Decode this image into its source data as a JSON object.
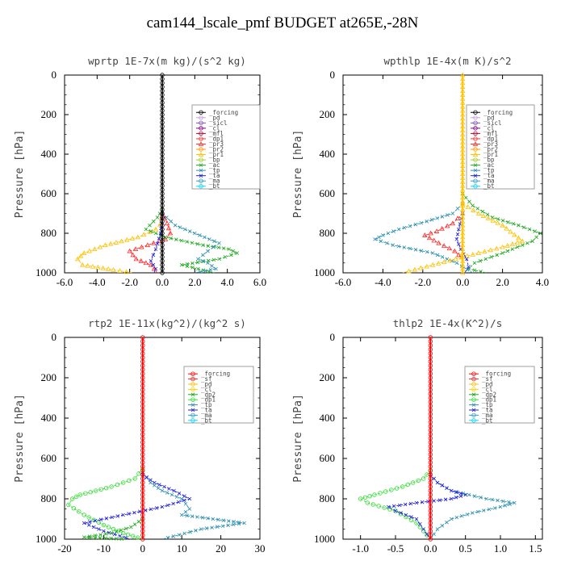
{
  "title": "cam144_lscale_pmf  BUDGET at265E,-28N",
  "chart_data": [
    {
      "type": "line",
      "title": "wprtp  1E-7x(m kg)/(s^2 kg)",
      "ylabel": "Pressure [hPa]",
      "xlim": [
        -6,
        6
      ],
      "ylim": [
        1000,
        0
      ],
      "xticks": [
        "-6.0",
        "-4.0",
        "-2.0",
        "0.0",
        "2.0",
        "4.0",
        "6.0"
      ],
      "yticks": [
        "0",
        "200",
        "400",
        "600",
        "800",
        "1000"
      ],
      "legend": [
        "_forcing",
        "_pd",
        "_sicl",
        "_cl",
        "_mfl",
        "_dp1",
        "_pr3",
        "_pr2",
        "_pr1",
        "_bp",
        "_ac",
        "_tp",
        "_ta",
        "_ma",
        "_bt"
      ],
      "legend_placement": "top-right",
      "series": [
        {
          "name": "_pr1",
          "color": "#ffc000",
          "x": [
            0,
            -0.1,
            -0.4,
            -1.5,
            -3.5,
            -4.8,
            -5.2,
            -4.9,
            -3.0,
            -1.8
          ],
          "y": [
            700,
            750,
            780,
            820,
            860,
            900,
            930,
            960,
            985,
            1000
          ]
        },
        {
          "name": "_pr3",
          "color": "#ff2a2a",
          "x": [
            0,
            0.3,
            0.5,
            0.2,
            -0.9,
            -2.0,
            -1.6,
            -0.7,
            -0.3
          ],
          "y": [
            700,
            750,
            800,
            830,
            860,
            890,
            930,
            960,
            1000
          ]
        },
        {
          "name": "_ac",
          "color": "#1fa81f",
          "x": [
            0,
            -0.3,
            -1.0,
            0.2,
            2.5,
            4.1,
            4.6,
            3.5,
            1.2,
            3.2
          ],
          "y": [
            680,
            720,
            780,
            820,
            860,
            880,
            900,
            930,
            960,
            1000
          ]
        },
        {
          "name": "_tp",
          "color": "#2a8fb0",
          "x": [
            0,
            0.8,
            2.0,
            3.5,
            2.8,
            2.2,
            2.8,
            3.3,
            2.0
          ],
          "y": [
            700,
            760,
            800,
            850,
            890,
            930,
            950,
            980,
            1000
          ]
        },
        {
          "name": "_ta",
          "color": "#2020e0",
          "x": [
            0,
            -0.1,
            -0.4,
            -0.7,
            -0.4,
            -0.5
          ],
          "y": [
            700,
            800,
            880,
            940,
            980,
            1000
          ]
        },
        {
          "name": "_forcing",
          "color": "#000000",
          "marker": "circle",
          "x": [
            0,
            0
          ],
          "y": [
            0,
            1000
          ]
        }
      ]
    },
    {
      "type": "line",
      "title": "wpthlp  1E-4x(m K)/s^2",
      "ylabel": "Pressure [hPa]",
      "xlim": [
        -6,
        4
      ],
      "ylim": [
        1000,
        0
      ],
      "xticks": [
        "-6.0",
        "-4.0",
        "-2.0",
        "0.0",
        "2.0",
        "4.0"
      ],
      "yticks": [
        "0",
        "200",
        "400",
        "600",
        "800",
        "1000"
      ],
      "legend": [
        "_forcing",
        "_pd",
        "_sicl",
        "_cl",
        "_mfl",
        "_dp1",
        "_pr3",
        "_pr2",
        "_pr1",
        "_bp",
        "_ac",
        "_tp",
        "_ta",
        "_ma",
        "_bt"
      ],
      "legend_placement": "top-right",
      "series": [
        {
          "name": "_ac",
          "color": "#1fa81f",
          "x": [
            0,
            0.5,
            1.5,
            2.8,
            3.9,
            3.5,
            2.0,
            0.6,
            0.3,
            1.2
          ],
          "y": [
            600,
            660,
            720,
            760,
            800,
            840,
            900,
            950,
            980,
            1000
          ]
        },
        {
          "name": "_tp",
          "color": "#2a8fb0",
          "x": [
            0,
            -0.5,
            -1.8,
            -3.2,
            -4.0,
            -4.4,
            -3.5,
            -1.5,
            -0.3,
            0.5
          ],
          "y": [
            650,
            700,
            740,
            780,
            810,
            830,
            860,
            900,
            950,
            1000
          ]
        },
        {
          "name": "_pr3",
          "color": "#ff2a2a",
          "x": [
            0,
            -0.5,
            -1.3,
            -1.9,
            -1.2,
            -0.4,
            0
          ],
          "y": [
            700,
            750,
            790,
            810,
            850,
            890,
            930
          ]
        },
        {
          "name": "_pr1",
          "color": "#ffc000",
          "x": [
            0,
            0.8,
            2.0,
            3.0,
            2.0,
            0.8,
            -1.5,
            -3.0
          ],
          "y": [
            650,
            700,
            760,
            840,
            870,
            900,
            960,
            1000
          ]
        },
        {
          "name": "_ta",
          "color": "#2020e0",
          "x": [
            0,
            -0.2,
            -0.3,
            -0.1,
            0.2,
            0.3,
            0.1
          ],
          "y": [
            700,
            780,
            830,
            880,
            930,
            970,
            1000
          ]
        },
        {
          "name": "_forcing",
          "color": "#ffc000",
          "marker": "triangle",
          "x": [
            0,
            0
          ],
          "y": [
            0,
            1000
          ]
        }
      ]
    },
    {
      "type": "line",
      "title": "rtp2  1E-11x(kg^2)/(kg^2 s)",
      "ylabel": "Pressure [hPa]",
      "xlim": [
        -20,
        30
      ],
      "ylim": [
        1000,
        0
      ],
      "xticks": [
        "-20",
        "-10",
        "0",
        "10",
        "20",
        "30"
      ],
      "yticks": [
        "0",
        "200",
        "400",
        "600",
        "800",
        "1000"
      ],
      "legend": [
        "_forcing",
        "_sf",
        "_pd",
        "_cl",
        "_dp2",
        "_dp1",
        "_tp",
        "_ta",
        "_ma",
        "_bt"
      ],
      "legend_placement": "top-right",
      "series": [
        {
          "name": "_dp1",
          "color": "#33dd33",
          "x": [
            0,
            -2,
            -8,
            -16,
            -18,
            -19,
            -15,
            -10,
            -5,
            0
          ],
          "y": [
            650,
            700,
            740,
            780,
            800,
            830,
            880,
            930,
            970,
            1000
          ]
        },
        {
          "name": "_tp",
          "color": "#2a8fb0",
          "x": [
            0,
            2,
            5,
            10,
            12,
            10,
            18,
            26,
            15,
            5
          ],
          "y": [
            670,
            720,
            760,
            800,
            850,
            880,
            900,
            920,
            950,
            1000
          ]
        },
        {
          "name": "_ta",
          "color": "#2020e0",
          "x": [
            0,
            3,
            8,
            12,
            5,
            -5,
            -15,
            -10,
            -3
          ],
          "y": [
            680,
            720,
            760,
            800,
            840,
            880,
            920,
            960,
            1000
          ]
        },
        {
          "name": "_dp2",
          "color": "#1fa81f",
          "x": [
            0,
            -3,
            -8,
            -15,
            -4
          ],
          "y": [
            900,
            940,
            970,
            990,
            1000
          ]
        },
        {
          "name": "_forcing",
          "color": "#ff0000",
          "marker": "circle",
          "x": [
            0,
            0
          ],
          "y": [
            0,
            1000
          ]
        }
      ]
    },
    {
      "type": "line",
      "title": "thlp2  1E-4x(K^2)/s",
      "ylabel": "Pressure [hPa]",
      "xlim": [
        -1.25,
        1.6
      ],
      "ylim": [
        1000,
        0
      ],
      "xticks": [
        "-1.0",
        "-0.5",
        "0.0",
        "0.5",
        "1.0",
        "1.5"
      ],
      "yticks": [
        "0",
        "200",
        "400",
        "600",
        "800",
        "1000"
      ],
      "legend": [
        "_forcing",
        "_sf",
        "_pd",
        "_cl",
        "_dp2",
        "_dp1",
        "_tp",
        "_ta",
        "_ma",
        "_bt"
      ],
      "legend_placement": "top-right",
      "series": [
        {
          "name": "_dp1",
          "color": "#33dd33",
          "x": [
            0,
            -0.1,
            -0.4,
            -0.8,
            -1.0,
            -0.9,
            -0.5,
            -0.2,
            0
          ],
          "y": [
            660,
            700,
            740,
            780,
            800,
            820,
            860,
            920,
            1000
          ]
        },
        {
          "name": "_tp",
          "color": "#2a8fb0",
          "x": [
            0,
            0.1,
            0.3,
            0.8,
            1.2,
            1.0,
            0.6,
            0.3,
            0.1,
            0
          ],
          "y": [
            680,
            720,
            760,
            800,
            820,
            840,
            870,
            900,
            950,
            1000
          ]
        },
        {
          "name": "_ta",
          "color": "#2020e0",
          "x": [
            0,
            0.1,
            0.3,
            0.5,
            0.3,
            -0.2,
            -0.6,
            -0.5,
            -0.2,
            0
          ],
          "y": [
            680,
            720,
            760,
            780,
            800,
            820,
            840,
            860,
            900,
            1000
          ]
        },
        {
          "name": "_forcing",
          "color": "#ff0000",
          "marker": "circle",
          "x": [
            0,
            0
          ],
          "y": [
            0,
            1000
          ]
        }
      ]
    }
  ]
}
